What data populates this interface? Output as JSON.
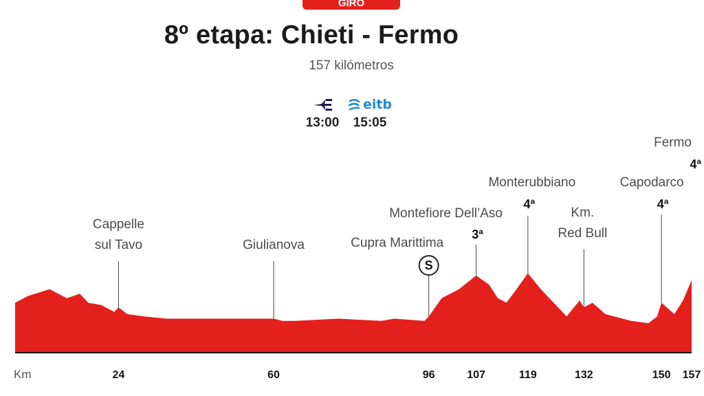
{
  "header": {
    "badge": "GIRO",
    "title": "8º etapa: Chieti - Fermo",
    "subtitle": "157 kilómetros"
  },
  "broadcast": [
    {
      "name": "Eurosport",
      "icon": "eurosport-logo-icon",
      "time": "13:00"
    },
    {
      "name": "eitb",
      "icon": "eitb-logo-icon",
      "time": "15:05"
    }
  ],
  "colors": {
    "profile": "#e3201b",
    "badge": "#e3201b",
    "eitb": "#1f8ad6",
    "eurosport": "#1c1c4a"
  },
  "chart_data": {
    "type": "area",
    "title": "8º etapa: Chieti - Fermo",
    "subtitle": "157 kilómetros",
    "xlabel": "Km",
    "ylabel": "",
    "xlim": [
      0,
      157
    ],
    "x_ticks": [
      24,
      60,
      96,
      107,
      119,
      132,
      150,
      157
    ],
    "x_unit": "Km",
    "profile": {
      "x": [
        0,
        3,
        8,
        12,
        15,
        17,
        20,
        23,
        24,
        26,
        30,
        35,
        45,
        55,
        60,
        62,
        65,
        75,
        85,
        88,
        95,
        96,
        99,
        103,
        107,
        110,
        112,
        114,
        116,
        119,
        122,
        125,
        128,
        131,
        132,
        134,
        137,
        141,
        143,
        147,
        149,
        150,
        153,
        155,
        157
      ],
      "y": [
        22,
        25,
        28,
        24,
        26,
        22,
        21,
        18,
        20,
        17,
        16,
        15,
        15,
        15,
        15,
        14,
        14,
        15,
        14,
        15,
        14,
        16,
        24,
        28,
        34,
        30,
        24,
        22,
        27,
        35,
        28,
        22,
        16,
        23,
        20,
        22,
        17,
        15,
        14,
        13,
        16,
        22,
        17,
        23,
        32
      ]
    },
    "landmarks": [
      {
        "km": 24,
        "name": [
          "Cappelle",
          "sul Tavo"
        ],
        "category": ""
      },
      {
        "km": 60,
        "name": [
          "Giulianova"
        ],
        "category": ""
      },
      {
        "km": 96,
        "name": [
          "Cupra Marittima"
        ],
        "category": "",
        "sprint": "S"
      },
      {
        "km": 107,
        "name": [
          "Montefiore Dell’Aso"
        ],
        "category": "3ª"
      },
      {
        "km": 119,
        "name": [
          "Monterubbiano"
        ],
        "category": "4ª"
      },
      {
        "km": 132,
        "name": [
          "Km.",
          "Red Bull"
        ],
        "category": ""
      },
      {
        "km": 150,
        "name": [
          "Capodarco"
        ],
        "category": "4ª"
      },
      {
        "km": 157,
        "name": [
          "Fermo"
        ],
        "category": "4ª"
      }
    ],
    "grid": false,
    "legend": "none"
  }
}
